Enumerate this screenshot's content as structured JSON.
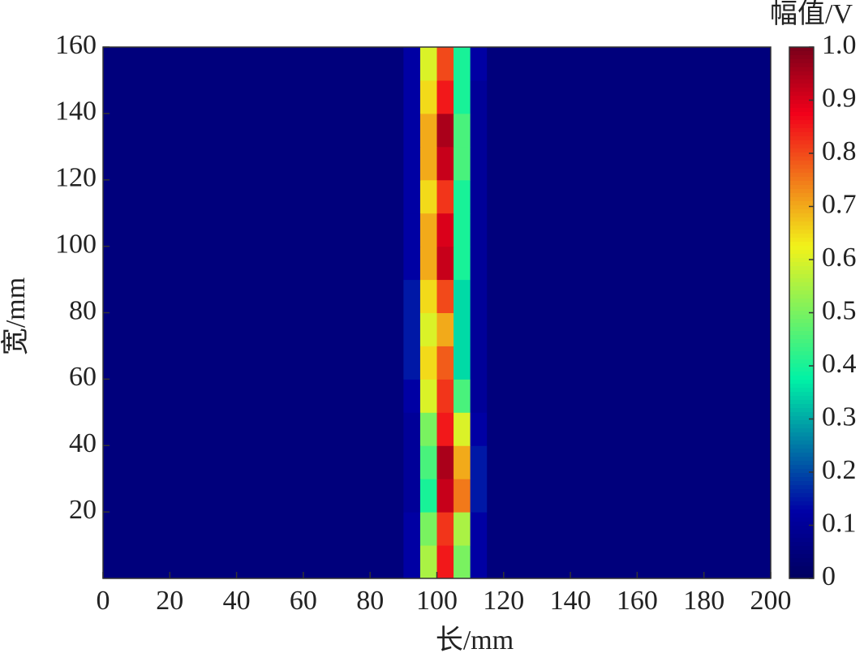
{
  "chart_data": {
    "type": "heatmap",
    "colormap": "jet",
    "xlabel": "长/mm",
    "ylabel": "宽/mm",
    "colorbar_label": "幅值/V",
    "xlim": [
      0,
      200
    ],
    "xticks": [
      0,
      20,
      40,
      60,
      80,
      100,
      120,
      140,
      160,
      180,
      200
    ],
    "ylim": [
      0,
      160
    ],
    "yticks": [
      20,
      40,
      60,
      80,
      100,
      120,
      140,
      160
    ],
    "zlim": [
      0,
      1
    ],
    "zticks": [
      0,
      0.1,
      0.2,
      0.3,
      0.4,
      0.5,
      0.6,
      0.7,
      0.8,
      0.9,
      {
        "value": 1,
        "label": "1.0"
      }
    ],
    "x": [
      2.5,
      7.5,
      12.5,
      17.5,
      22.5,
      27.5,
      32.5,
      37.5,
      42.5,
      47.5,
      52.5,
      57.5,
      62.5,
      67.5,
      72.5,
      77.5,
      82.5,
      87.5,
      92.5,
      97.5,
      102.5,
      107.5,
      112.5,
      117.5,
      122.5,
      127.5,
      132.5,
      137.5,
      142.5,
      147.5,
      152.5,
      157.5,
      162.5,
      167.5,
      172.5,
      177.5,
      182.5,
      187.5,
      192.5,
      197.5
    ],
    "y": [
      5,
      15,
      25,
      35,
      45,
      55,
      65,
      75,
      85,
      95,
      105,
      115,
      125,
      135,
      145,
      155
    ],
    "z": [
      [
        0.05,
        0.05,
        0.05,
        0.05,
        0.05,
        0.05,
        0.05,
        0.05,
        0.05,
        0.05,
        0.05,
        0.05,
        0.05,
        0.05,
        0.05,
        0.05,
        0.05,
        0.05,
        0.12,
        0.55,
        0.85,
        0.5,
        0.12,
        0.05,
        0.05,
        0.05,
        0.05,
        0.05,
        0.05,
        0.05,
        0.05,
        0.05,
        0.05,
        0.05,
        0.05,
        0.05,
        0.05,
        0.05,
        0.05,
        0.05
      ],
      [
        0.05,
        0.05,
        0.05,
        0.05,
        0.05,
        0.05,
        0.05,
        0.05,
        0.05,
        0.05,
        0.05,
        0.05,
        0.05,
        0.05,
        0.05,
        0.05,
        0.05,
        0.05,
        0.12,
        0.5,
        0.82,
        0.55,
        0.12,
        0.05,
        0.05,
        0.05,
        0.05,
        0.05,
        0.05,
        0.05,
        0.05,
        0.05,
        0.05,
        0.05,
        0.05,
        0.05,
        0.05,
        0.05,
        0.05,
        0.05
      ],
      [
        0.05,
        0.05,
        0.05,
        0.05,
        0.05,
        0.05,
        0.05,
        0.05,
        0.05,
        0.05,
        0.05,
        0.05,
        0.05,
        0.05,
        0.05,
        0.05,
        0.05,
        0.05,
        0.1,
        0.4,
        0.92,
        0.75,
        0.15,
        0.05,
        0.05,
        0.05,
        0.05,
        0.05,
        0.05,
        0.05,
        0.05,
        0.05,
        0.05,
        0.05,
        0.05,
        0.05,
        0.05,
        0.05,
        0.05,
        0.05
      ],
      [
        0.05,
        0.05,
        0.05,
        0.05,
        0.05,
        0.05,
        0.05,
        0.05,
        0.05,
        0.05,
        0.05,
        0.05,
        0.05,
        0.05,
        0.05,
        0.05,
        0.05,
        0.05,
        0.1,
        0.45,
        0.95,
        0.7,
        0.15,
        0.05,
        0.05,
        0.05,
        0.05,
        0.05,
        0.05,
        0.05,
        0.05,
        0.05,
        0.05,
        0.05,
        0.05,
        0.05,
        0.05,
        0.05,
        0.05,
        0.05
      ],
      [
        0.05,
        0.05,
        0.05,
        0.05,
        0.05,
        0.05,
        0.05,
        0.05,
        0.05,
        0.05,
        0.05,
        0.05,
        0.05,
        0.05,
        0.05,
        0.05,
        0.05,
        0.05,
        0.1,
        0.5,
        0.85,
        0.6,
        0.12,
        0.05,
        0.05,
        0.05,
        0.05,
        0.05,
        0.05,
        0.05,
        0.05,
        0.05,
        0.05,
        0.05,
        0.05,
        0.05,
        0.05,
        0.05,
        0.05,
        0.05
      ],
      [
        0.05,
        0.05,
        0.05,
        0.05,
        0.05,
        0.05,
        0.05,
        0.05,
        0.05,
        0.05,
        0.05,
        0.05,
        0.05,
        0.05,
        0.05,
        0.05,
        0.05,
        0.05,
        0.12,
        0.6,
        0.82,
        0.45,
        0.1,
        0.05,
        0.05,
        0.05,
        0.05,
        0.05,
        0.05,
        0.05,
        0.05,
        0.05,
        0.05,
        0.05,
        0.05,
        0.05,
        0.05,
        0.05,
        0.05,
        0.05
      ],
      [
        0.05,
        0.05,
        0.05,
        0.05,
        0.05,
        0.05,
        0.05,
        0.05,
        0.05,
        0.05,
        0.05,
        0.05,
        0.05,
        0.05,
        0.05,
        0.05,
        0.05,
        0.05,
        0.15,
        0.65,
        0.78,
        0.35,
        0.1,
        0.05,
        0.05,
        0.05,
        0.05,
        0.05,
        0.05,
        0.05,
        0.05,
        0.05,
        0.05,
        0.05,
        0.05,
        0.05,
        0.05,
        0.05,
        0.05,
        0.05
      ],
      [
        0.05,
        0.05,
        0.05,
        0.05,
        0.05,
        0.05,
        0.05,
        0.05,
        0.05,
        0.05,
        0.05,
        0.05,
        0.05,
        0.05,
        0.05,
        0.05,
        0.05,
        0.05,
        0.15,
        0.6,
        0.7,
        0.35,
        0.1,
        0.05,
        0.05,
        0.05,
        0.05,
        0.05,
        0.05,
        0.05,
        0.05,
        0.05,
        0.05,
        0.05,
        0.05,
        0.05,
        0.05,
        0.05,
        0.05,
        0.05
      ],
      [
        0.05,
        0.05,
        0.05,
        0.05,
        0.05,
        0.05,
        0.05,
        0.05,
        0.05,
        0.05,
        0.05,
        0.05,
        0.05,
        0.05,
        0.05,
        0.05,
        0.05,
        0.05,
        0.15,
        0.65,
        0.8,
        0.35,
        0.1,
        0.05,
        0.05,
        0.05,
        0.05,
        0.05,
        0.05,
        0.05,
        0.05,
        0.05,
        0.05,
        0.05,
        0.05,
        0.05,
        0.05,
        0.05,
        0.05,
        0.05
      ],
      [
        0.05,
        0.05,
        0.05,
        0.05,
        0.05,
        0.05,
        0.05,
        0.05,
        0.05,
        0.05,
        0.05,
        0.05,
        0.05,
        0.05,
        0.05,
        0.05,
        0.05,
        0.05,
        0.12,
        0.7,
        0.92,
        0.4,
        0.1,
        0.05,
        0.05,
        0.05,
        0.05,
        0.05,
        0.05,
        0.05,
        0.05,
        0.05,
        0.05,
        0.05,
        0.05,
        0.05,
        0.05,
        0.05,
        0.05,
        0.05
      ],
      [
        0.05,
        0.05,
        0.05,
        0.05,
        0.05,
        0.05,
        0.05,
        0.05,
        0.05,
        0.05,
        0.05,
        0.05,
        0.05,
        0.05,
        0.05,
        0.05,
        0.05,
        0.05,
        0.12,
        0.7,
        0.9,
        0.4,
        0.1,
        0.05,
        0.05,
        0.05,
        0.05,
        0.05,
        0.05,
        0.05,
        0.05,
        0.05,
        0.05,
        0.05,
        0.05,
        0.05,
        0.05,
        0.05,
        0.05,
        0.05
      ],
      [
        0.05,
        0.05,
        0.05,
        0.05,
        0.05,
        0.05,
        0.05,
        0.05,
        0.05,
        0.05,
        0.05,
        0.05,
        0.05,
        0.05,
        0.05,
        0.05,
        0.05,
        0.05,
        0.12,
        0.65,
        0.82,
        0.4,
        0.1,
        0.05,
        0.05,
        0.05,
        0.05,
        0.05,
        0.05,
        0.05,
        0.05,
        0.05,
        0.05,
        0.05,
        0.05,
        0.05,
        0.05,
        0.05,
        0.05,
        0.05
      ],
      [
        0.05,
        0.05,
        0.05,
        0.05,
        0.05,
        0.05,
        0.05,
        0.05,
        0.05,
        0.05,
        0.05,
        0.05,
        0.05,
        0.05,
        0.05,
        0.05,
        0.05,
        0.05,
        0.12,
        0.7,
        0.92,
        0.45,
        0.1,
        0.05,
        0.05,
        0.05,
        0.05,
        0.05,
        0.05,
        0.05,
        0.05,
        0.05,
        0.05,
        0.05,
        0.05,
        0.05,
        0.05,
        0.05,
        0.05,
        0.05
      ],
      [
        0.05,
        0.05,
        0.05,
        0.05,
        0.05,
        0.05,
        0.05,
        0.05,
        0.05,
        0.05,
        0.05,
        0.05,
        0.05,
        0.05,
        0.05,
        0.05,
        0.05,
        0.05,
        0.12,
        0.7,
        0.95,
        0.45,
        0.1,
        0.05,
        0.05,
        0.05,
        0.05,
        0.05,
        0.05,
        0.05,
        0.05,
        0.05,
        0.05,
        0.05,
        0.05,
        0.05,
        0.05,
        0.05,
        0.05,
        0.05
      ],
      [
        0.05,
        0.05,
        0.05,
        0.05,
        0.05,
        0.05,
        0.05,
        0.05,
        0.05,
        0.05,
        0.05,
        0.05,
        0.05,
        0.05,
        0.05,
        0.05,
        0.05,
        0.05,
        0.12,
        0.65,
        0.85,
        0.4,
        0.1,
        0.05,
        0.05,
        0.05,
        0.05,
        0.05,
        0.05,
        0.05,
        0.05,
        0.05,
        0.05,
        0.05,
        0.05,
        0.05,
        0.05,
        0.05,
        0.05,
        0.05
      ],
      [
        0.05,
        0.05,
        0.05,
        0.05,
        0.05,
        0.05,
        0.05,
        0.05,
        0.05,
        0.05,
        0.05,
        0.05,
        0.05,
        0.05,
        0.05,
        0.05,
        0.05,
        0.05,
        0.12,
        0.6,
        0.8,
        0.4,
        0.12,
        0.05,
        0.05,
        0.05,
        0.05,
        0.05,
        0.05,
        0.05,
        0.05,
        0.05,
        0.05,
        0.05,
        0.05,
        0.05,
        0.05,
        0.05,
        0.05,
        0.05
      ]
    ]
  }
}
